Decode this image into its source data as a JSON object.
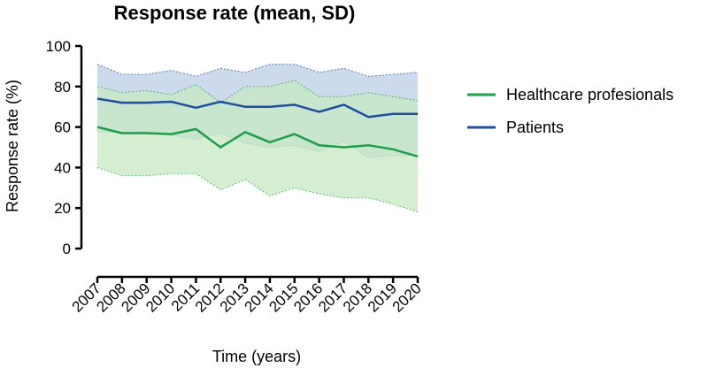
{
  "chart_data": {
    "type": "line",
    "title": "Response rate (mean, SD)",
    "xlabel": "Time (years)",
    "ylabel": "Response rate (%)",
    "ylim": [
      0,
      100
    ],
    "yticks": [
      0,
      20,
      40,
      60,
      80,
      100
    ],
    "categories": [
      "2007",
      "2008",
      "2009",
      "2010",
      "2011",
      "2012",
      "2013",
      "2014",
      "2015",
      "2016",
      "2017",
      "2018",
      "2019",
      "2020"
    ],
    "legend_position": "right",
    "series": [
      {
        "name": "Healthcare profesionals",
        "color": "#1e9e48",
        "band_color": "#c7e8c3",
        "mean": [
          60,
          57,
          57,
          56.5,
          59,
          50,
          57.5,
          52.5,
          56.5,
          51,
          50,
          51,
          49,
          45.5
        ],
        "upper": [
          80,
          77,
          78,
          76,
          81,
          72,
          80,
          80,
          83,
          75,
          75,
          77,
          75,
          73
        ],
        "lower": [
          40,
          36,
          36,
          37,
          37,
          29,
          34,
          26,
          30,
          27,
          25,
          25,
          22,
          18
        ]
      },
      {
        "name": "Patients",
        "color": "#1f4f9c",
        "band_color": "#c3d3e8",
        "mean": [
          74,
          72,
          72,
          72.5,
          69.5,
          72.5,
          70,
          70,
          71,
          67.5,
          71,
          65,
          66.5,
          66.5
        ],
        "upper": [
          91,
          86,
          86,
          88,
          85,
          89,
          87,
          91,
          91,
          87,
          89,
          85,
          86,
          87
        ],
        "lower": [
          58,
          57,
          58,
          56,
          54,
          57,
          52,
          50,
          51,
          48,
          53,
          45,
          46,
          46
        ]
      }
    ]
  }
}
